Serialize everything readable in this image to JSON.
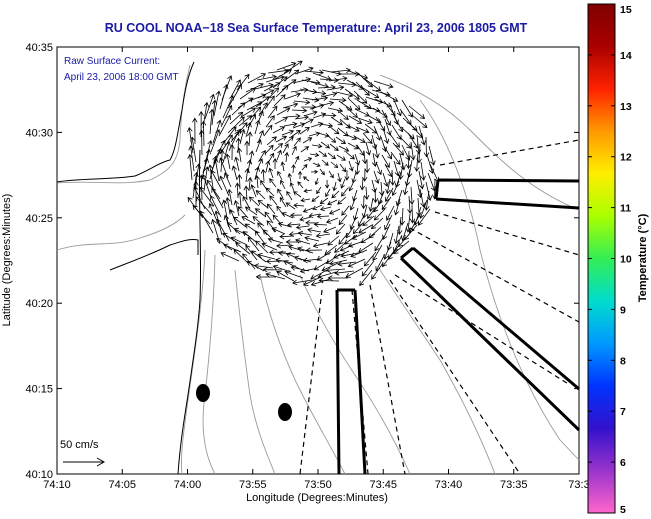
{
  "chart_data": {
    "type": "map",
    "title": "RU COOL  NOAA−18  Sea Surface Temperature:  April 23, 2006 1805 GMT",
    "annotation": {
      "line1": "Raw Surface Current:",
      "line2": "April 23, 2006 18:00 GMT"
    },
    "xlabel": "Longitude (Degrees:Minutes)",
    "ylabel": "Latitude (Degrees:Minutes)",
    "x_ticks": [
      "74:10",
      "74:05",
      "74:00",
      "73:55",
      "73:50",
      "73:45",
      "73:40",
      "73:35",
      "73:3"
    ],
    "y_ticks": [
      "40:10",
      "40:15",
      "40:20",
      "40:25",
      "40:30",
      "40:35"
    ],
    "scale_label": "50 cm/s",
    "colorbar": {
      "label": "Temperature (°C)",
      "min": 5,
      "max": 15,
      "ticks": [
        "5",
        "6",
        "7",
        "8",
        "9",
        "10",
        "11",
        "12",
        "13",
        "14",
        "15"
      ],
      "colors": [
        "#ff66cc",
        "#9933cc",
        "#3311cc",
        "#0033ff",
        "#0099ff",
        "#00ddcc",
        "#33ee55",
        "#aaff00",
        "#ffee00",
        "#ff9900",
        "#ff2200",
        "#aa0000",
        "#800000"
      ]
    },
    "colors": {
      "title": "#1a1aa6",
      "vectors": "#000000",
      "contours": "#999999"
    }
  }
}
